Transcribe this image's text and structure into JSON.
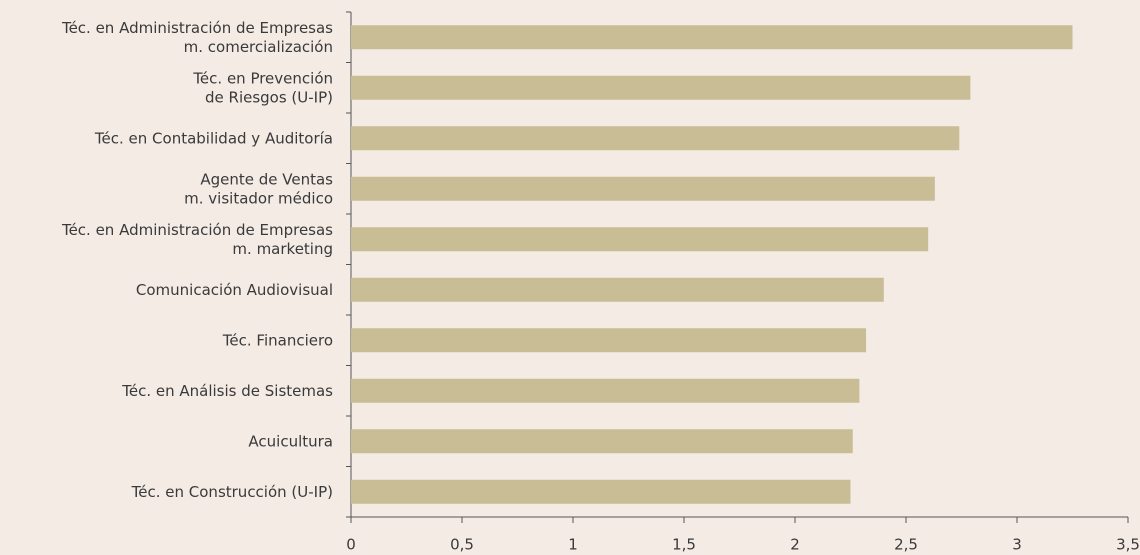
{
  "chart_data": {
    "type": "barh",
    "categories": [
      [
        "Téc. en Administración de Empresas",
        "m. comercialización"
      ],
      [
        "Téc. en Prevención",
        "de Riesgos (U-IP)"
      ],
      [
        "Téc. en Contabilidad y Auditoría"
      ],
      [
        "Agente de Ventas",
        "m. visitador médico"
      ],
      [
        "Téc. en Administración de Empresas",
        "m. marketing"
      ],
      [
        "Comunicación Audiovisual"
      ],
      [
        "Téc. Financiero"
      ],
      [
        "Téc. en Análisis de Sistemas"
      ],
      [
        "Acuicultura"
      ],
      [
        "Téc. en Construcción (U-IP)"
      ]
    ],
    "values": [
      3.25,
      2.79,
      2.74,
      2.63,
      2.6,
      2.4,
      2.32,
      2.29,
      2.26,
      2.25
    ],
    "color": "#c8bd95",
    "xlim": [
      0,
      3.5
    ],
    "xticks": [
      0,
      {
        "value": 0.5,
        "label": "0,5"
      },
      1,
      {
        "value": 1.5,
        "label": "1,5"
      },
      2,
      {
        "value": 2.5,
        "label": "2,5"
      },
      3,
      {
        "value": 3.5,
        "label": "3,5"
      }
    ],
    "grid": false
  }
}
